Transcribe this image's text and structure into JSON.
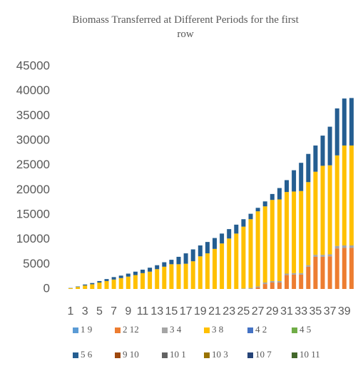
{
  "chart_data": {
    "type": "stacked_bar",
    "title": "Biomass Transferred at Different Periods for the first row",
    "categories": [
      "1",
      null,
      "3",
      null,
      "5",
      null,
      "7",
      null,
      "9",
      null,
      "11",
      null,
      "13",
      null,
      "15",
      null,
      "17",
      null,
      "19",
      null,
      "21",
      null,
      "23",
      null,
      "25",
      null,
      "27",
      null,
      "29",
      null,
      "31",
      null,
      "33",
      null,
      "35",
      null,
      "37",
      null,
      "39",
      null
    ],
    "ylim": [
      0,
      45000
    ],
    "yticks": [
      0,
      5000,
      10000,
      15000,
      20000,
      25000,
      30000,
      35000,
      40000,
      45000
    ],
    "grid": false,
    "legend": "bottom",
    "series": [
      {
        "name": "1 9",
        "color": "#5b9bd5",
        "values": [
          0,
          0,
          0,
          0,
          0,
          0,
          0,
          0,
          0,
          0,
          0,
          0,
          0,
          0,
          0,
          0,
          0,
          0,
          0,
          0,
          0,
          0,
          0,
          0,
          0,
          0,
          0,
          0,
          0,
          0,
          0,
          0,
          0,
          0,
          0,
          0,
          0,
          0,
          0,
          0
        ]
      },
      {
        "name": "2 12",
        "color": "#ed7d31",
        "values": [
          0,
          0,
          0,
          0,
          0,
          0,
          0,
          0,
          0,
          0,
          0,
          0,
          0,
          0,
          0,
          0,
          0,
          0,
          0,
          0,
          0,
          0,
          0,
          0,
          0,
          0,
          300,
          1000,
          1300,
          1300,
          2800,
          2900,
          2900,
          4500,
          6500,
          6500,
          6600,
          8200,
          8300,
          8300
        ]
      },
      {
        "name": "3 4",
        "color": "#a5a5a5",
        "values": [
          0,
          0,
          0,
          0,
          0,
          0,
          0,
          0,
          0,
          0,
          0,
          0,
          0,
          0,
          0,
          0,
          0,
          0,
          0,
          0,
          0,
          0,
          0,
          0,
          100,
          200,
          200,
          300,
          300,
          300,
          300,
          300,
          300,
          300,
          400,
          400,
          400,
          500,
          500,
          500
        ]
      },
      {
        "name": "3 8",
        "color": "#ffc000",
        "values": [
          150,
          400,
          700,
          950,
          1300,
          1600,
          1900,
          2200,
          2500,
          2800,
          3200,
          3500,
          4000,
          4500,
          5000,
          5000,
          5100,
          5600,
          6600,
          7200,
          8100,
          9200,
          10200,
          11200,
          12500,
          13900,
          15200,
          15400,
          16400,
          16500,
          16500,
          16500,
          16600,
          16800,
          16800,
          18000,
          18000,
          18300,
          20200,
          20200
        ]
      },
      {
        "name": "4 2",
        "color": "#4472c4",
        "values": [
          0,
          0,
          0,
          0,
          0,
          0,
          0,
          0,
          0,
          0,
          0,
          0,
          0,
          0,
          0,
          0,
          0,
          0,
          0,
          0,
          0,
          0,
          0,
          0,
          0,
          0,
          0,
          0,
          0,
          0,
          0,
          0,
          0,
          0,
          0,
          0,
          0,
          0,
          0,
          0
        ]
      },
      {
        "name": "4 5",
        "color": "#70ad47",
        "values": [
          0,
          0,
          0,
          0,
          0,
          0,
          0,
          0,
          0,
          0,
          0,
          0,
          0,
          0,
          0,
          0,
          0,
          0,
          0,
          0,
          0,
          0,
          0,
          0,
          0,
          0,
          0,
          0,
          0,
          0,
          0,
          0,
          0,
          0,
          0,
          0,
          0,
          0,
          0,
          0
        ]
      },
      {
        "name": "5 6",
        "color": "#255e91",
        "values": [
          50,
          100,
          200,
          250,
          300,
          400,
          500,
          500,
          600,
          700,
          700,
          800,
          800,
          900,
          900,
          1500,
          2100,
          2400,
          2200,
          2300,
          2200,
          2000,
          1900,
          1800,
          1500,
          1100,
          700,
          1000,
          1200,
          2300,
          2400,
          4300,
          5700,
          5700,
          5300,
          6100,
          7800,
          9500,
          9500,
          9600
        ]
      },
      {
        "name": "9 10",
        "color": "#9e480e",
        "values": [
          0,
          0,
          0,
          0,
          0,
          0,
          0,
          0,
          0,
          0,
          0,
          0,
          0,
          0,
          0,
          0,
          0,
          0,
          0,
          0,
          0,
          0,
          0,
          0,
          0,
          0,
          0,
          0,
          0,
          0,
          0,
          0,
          0,
          0,
          0,
          0,
          0,
          0,
          0,
          0
        ]
      },
      {
        "name": "10 1",
        "color": "#636363",
        "values": [
          0,
          0,
          0,
          0,
          0,
          0,
          0,
          0,
          0,
          0,
          0,
          0,
          0,
          0,
          0,
          0,
          0,
          0,
          0,
          0,
          0,
          0,
          0,
          0,
          0,
          0,
          0,
          0,
          0,
          0,
          0,
          0,
          0,
          0,
          0,
          0,
          0,
          0,
          0,
          0
        ]
      },
      {
        "name": "10 3",
        "color": "#997300",
        "values": [
          0,
          0,
          0,
          0,
          0,
          0,
          0,
          0,
          0,
          0,
          0,
          0,
          0,
          0,
          0,
          0,
          0,
          0,
          0,
          0,
          0,
          0,
          0,
          0,
          0,
          0,
          0,
          0,
          0,
          0,
          0,
          0,
          0,
          0,
          0,
          0,
          0,
          0,
          0,
          0
        ]
      },
      {
        "name": "10 7",
        "color": "#264478",
        "values": [
          0,
          0,
          0,
          0,
          0,
          0,
          0,
          0,
          0,
          0,
          0,
          0,
          0,
          0,
          0,
          0,
          0,
          0,
          0,
          0,
          0,
          0,
          0,
          0,
          0,
          0,
          0,
          0,
          0,
          0,
          0,
          0,
          0,
          0,
          0,
          0,
          0,
          0,
          0,
          0
        ]
      },
      {
        "name": "10 11",
        "color": "#43682b",
        "values": [
          0,
          0,
          0,
          0,
          0,
          0,
          0,
          0,
          0,
          0,
          0,
          0,
          0,
          0,
          0,
          0,
          0,
          0,
          0,
          0,
          0,
          0,
          0,
          0,
          0,
          0,
          0,
          0,
          0,
          0,
          0,
          0,
          0,
          0,
          0,
          0,
          0,
          0,
          0,
          0
        ]
      }
    ]
  }
}
